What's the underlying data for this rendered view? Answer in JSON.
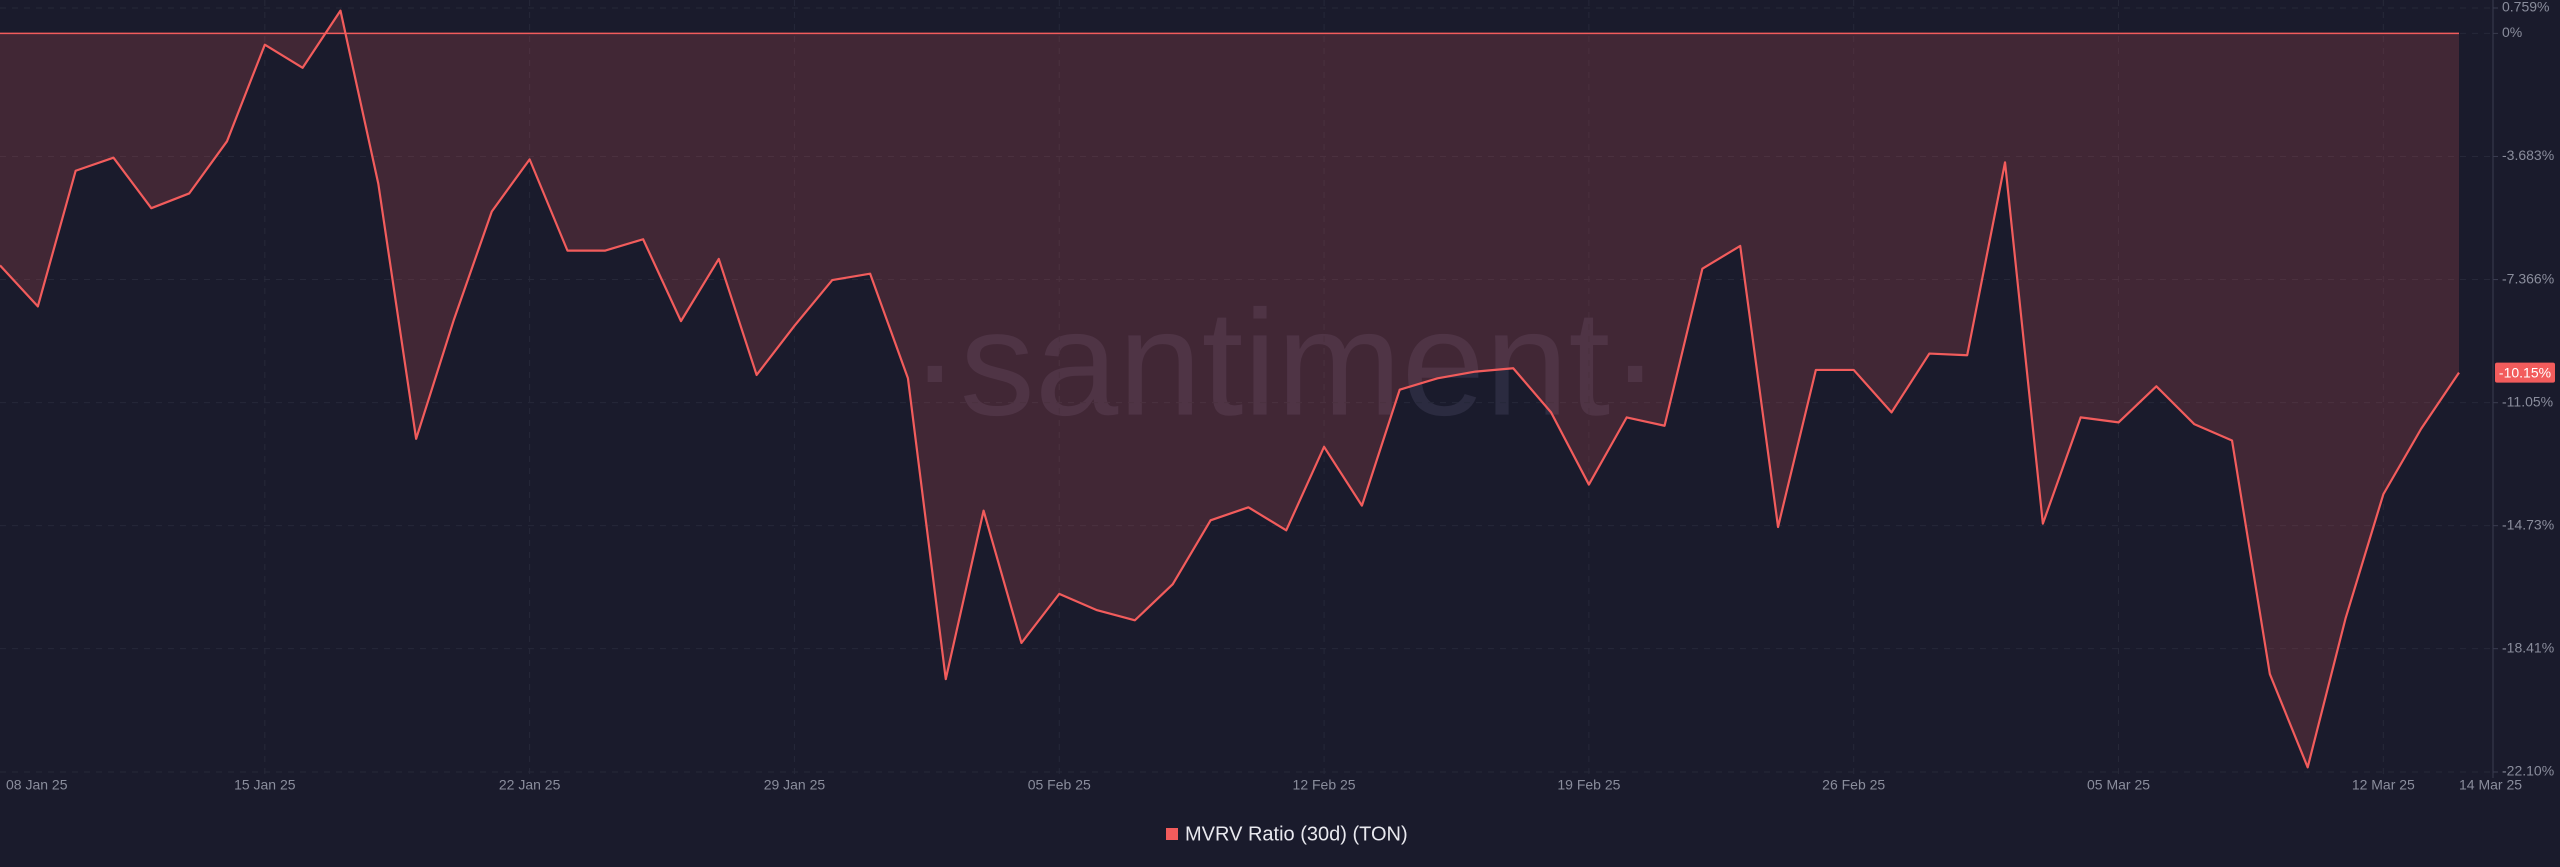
{
  "chart_data": {
    "type": "line",
    "watermark": "·santiment·",
    "categories": [
      "08 Jan 25",
      null,
      null,
      null,
      null,
      null,
      null,
      "15 Jan 25",
      null,
      null,
      null,
      null,
      null,
      null,
      "22 Jan 25",
      null,
      null,
      null,
      null,
      null,
      null,
      "29 Jan 25",
      null,
      null,
      null,
      null,
      null,
      null,
      "05 Feb 25",
      null,
      null,
      null,
      null,
      null,
      null,
      "12 Feb 25",
      null,
      null,
      null,
      null,
      null,
      null,
      "19 Feb 25",
      null,
      null,
      null,
      null,
      null,
      null,
      "26 Feb 25",
      null,
      null,
      null,
      null,
      null,
      null,
      "05 Mar 25",
      null,
      null,
      null,
      null,
      null,
      null,
      "12 Mar 25",
      null,
      "14 Mar 25"
    ],
    "series": [
      {
        "name": "MVRV Ratio (30d) (TON)",
        "color": "#f25c5c",
        "values": [
          -6.94,
          -8.17,
          -4.11,
          -3.72,
          -5.23,
          -4.79,
          -3.23,
          -0.34,
          -1.03,
          0.68,
          -4.5,
          -12.13,
          -8.56,
          -5.33,
          -3.77,
          -6.5,
          -6.5,
          -6.16,
          -8.61,
          -6.75,
          -10.22,
          -8.75,
          -7.38,
          -7.19,
          -10.32,
          -19.32,
          -14.28,
          -18.24,
          -16.77,
          -17.26,
          -17.56,
          -16.48,
          -14.57,
          -14.18,
          -14.87,
          -12.37,
          -14.13,
          -10.66,
          -10.32,
          -10.12,
          -10.02,
          -11.34,
          -13.5,
          -11.49,
          -11.74,
          -7.04,
          -6.36,
          -14.77,
          -10.07,
          -10.07,
          -11.34,
          -9.58,
          -9.63,
          -3.86,
          -14.67,
          -11.49,
          -11.64,
          -10.56,
          -11.69,
          -12.18,
          -19.17,
          -21.96,
          -17.51,
          -13.79,
          -11.83,
          -10.15
        ],
        "value_labels": [
          null,
          null,
          null,
          null,
          null,
          null,
          null,
          null,
          null,
          null,
          null,
          null,
          null,
          null,
          null,
          null,
          null,
          null,
          null,
          null,
          null,
          null,
          null,
          null,
          null,
          null,
          null,
          null,
          null,
          null,
          null,
          null,
          null,
          null,
          null,
          null,
          null,
          null,
          null,
          null,
          null,
          null,
          null,
          null,
          null,
          null,
          null,
          null,
          null,
          null,
          null,
          null,
          null,
          null,
          null,
          null,
          null,
          null,
          null,
          null,
          null,
          null,
          null,
          null,
          null,
          "-10.15%"
        ]
      }
    ],
    "ylim": [
      -22.1,
      0.759
    ],
    "yticks": [
      {
        "value": 0.759,
        "label": "0.759%"
      },
      {
        "value": 0,
        "label": "0%"
      },
      {
        "value": -3.683,
        "label": "-3.683%"
      },
      {
        "value": -7.366,
        "label": "-7.366%"
      },
      {
        "value": -11.05,
        "label": "-11.05%"
      },
      {
        "value": -14.73,
        "label": "-14.73%"
      },
      {
        "value": -18.41,
        "label": "-18.41%"
      },
      {
        "value": -22.1,
        "label": "-22.10%"
      }
    ],
    "grid": true,
    "legend": "bottom"
  }
}
